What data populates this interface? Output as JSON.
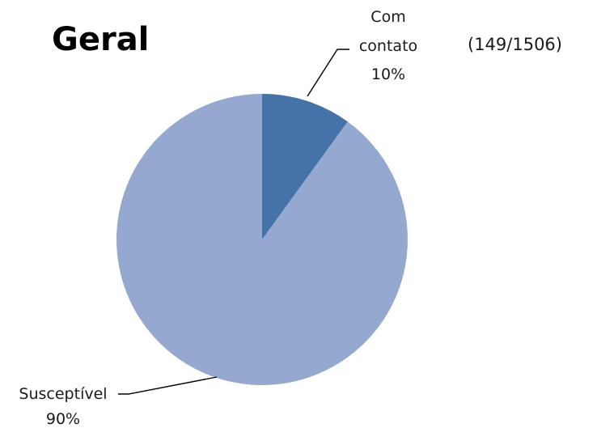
{
  "chart_data": {
    "type": "pie",
    "title": "Geral",
    "annotation": "(149/1506)",
    "start_angle_deg": 0,
    "direction": "clockwise",
    "slices": [
      {
        "label_lines": [
          "Com",
          "contato"
        ],
        "value": 10,
        "value_label": "10%",
        "color": "#4572a7"
      },
      {
        "label_lines": [
          "Susceptível"
        ],
        "value": 90,
        "value_label": "90%",
        "color": "#95a9d0"
      }
    ]
  }
}
